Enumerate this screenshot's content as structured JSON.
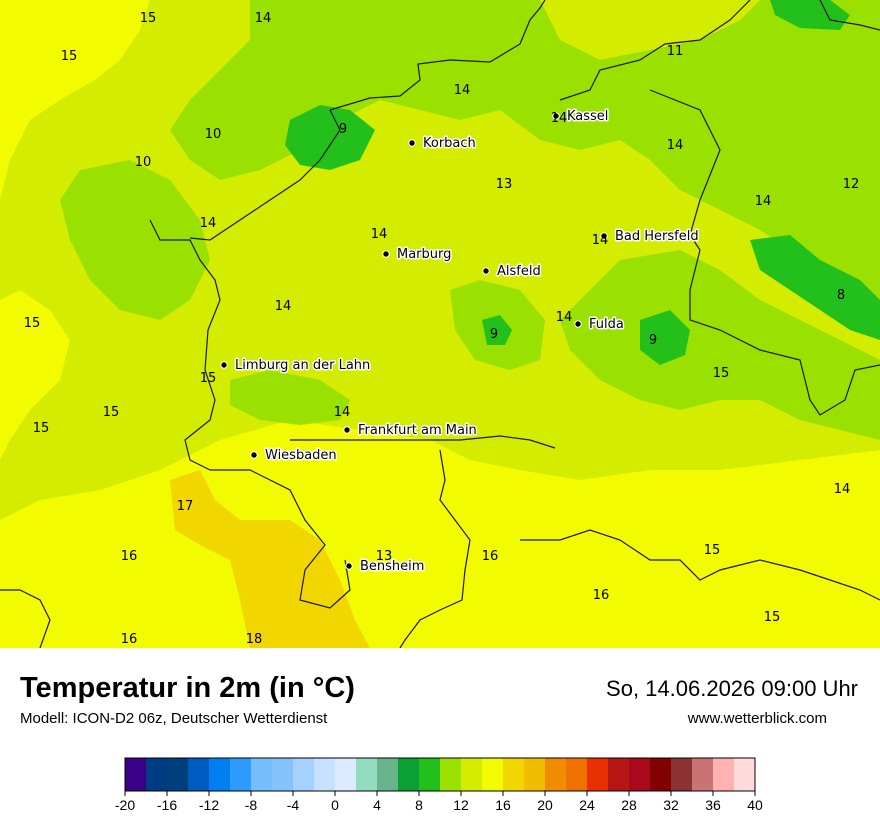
{
  "map": {
    "background_color": "#d3ec00",
    "border_color": "#1a1a1a",
    "cities": [
      {
        "name": "Kassel"
      },
      {
        "name": "Korbach"
      },
      {
        "name": "Bad Hersfeld"
      },
      {
        "name": "Marburg"
      },
      {
        "name": "Alsfeld"
      },
      {
        "name": "Fulda"
      },
      {
        "name": "Limburg an der Lahn"
      },
      {
        "name": "Frankfurt am Main"
      },
      {
        "name": "Wiesbaden"
      },
      {
        "name": "Bensheim"
      }
    ],
    "values": [
      "15",
      "14",
      "15",
      "14",
      "11",
      "10",
      "9",
      "10",
      "14",
      "12",
      "14",
      "13",
      "14",
      "14",
      "14",
      "14",
      "8",
      "15",
      "14",
      "9",
      "9",
      "15",
      "14",
      "15",
      "15",
      "14",
      "15",
      "17",
      "14",
      "16",
      "13",
      "16",
      "15",
      "16",
      "15",
      "16",
      "18"
    ]
  },
  "footer": {
    "title": "Temperatur in 2m (in °C)",
    "subtitle": "Modell: ICON-D2 06z, Deutscher Wetterdienst",
    "datetime": "So, 14.06.2026 09:00 Uhr",
    "website": "www.wetterblick.com"
  },
  "legend": {
    "ticks": [
      "-20",
      "-16",
      "-12",
      "-8",
      "-4",
      "0",
      "4",
      "8",
      "12",
      "16",
      "20",
      "24",
      "28",
      "32",
      "36",
      "40"
    ],
    "colors": [
      "#3a0088",
      "#003c84",
      "#003f7e",
      "#005bbf",
      "#0080f0",
      "#2e9cff",
      "#76bfff",
      "#86c3fb",
      "#a6d1ff",
      "#c7e2ff",
      "#dcebff",
      "#92ddbf",
      "#68b38c",
      "#0c9f36",
      "#23c01c",
      "#9ae000",
      "#d3ec00",
      "#f2fb00",
      "#f2d600",
      "#f0bd00",
      "#f08c00",
      "#f07000",
      "#e83000",
      "#b61616",
      "#a8091b",
      "#820000",
      "#8c3333",
      "#c97474",
      "#ffb2b2",
      "#ffdada"
    ]
  }
}
